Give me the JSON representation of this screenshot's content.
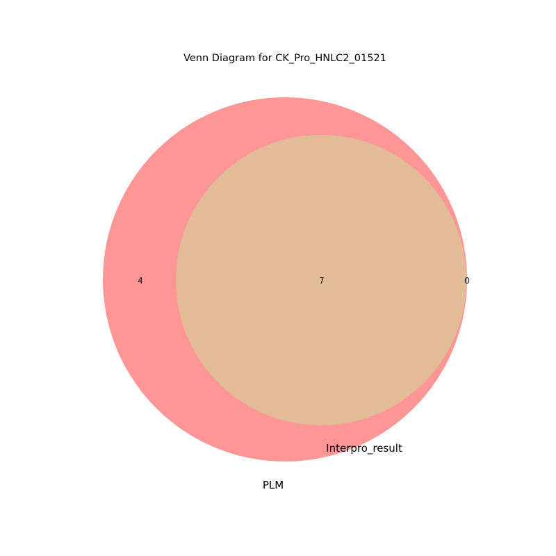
{
  "figure": {
    "title": "Venn Diagram for CK_Pro_HNLC2_01521"
  },
  "chart_data": {
    "type": "venn",
    "title": "Venn Diagram for CK_Pro_HNLC2_01521",
    "sets": [
      {
        "name": "PLM",
        "color": "#ff9696",
        "only_count": "4"
      },
      {
        "name": "Interpro_result",
        "color": "#e1bc97",
        "only_count": "0"
      }
    ],
    "intersection_count": "7",
    "colors": {
      "set_a": "#ff9696",
      "overlap": "#e1bc97",
      "background": "#ffffff"
    }
  }
}
